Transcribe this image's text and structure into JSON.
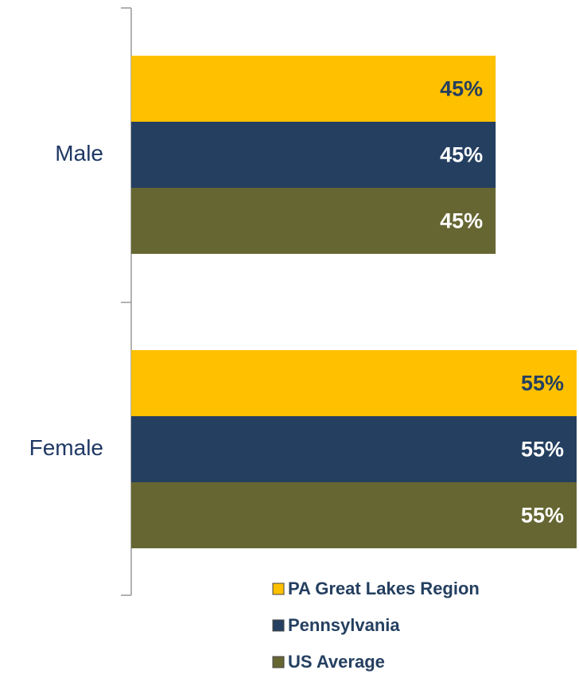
{
  "chart_data": {
    "type": "barh",
    "categories": [
      "Male",
      "Female"
    ],
    "series": [
      {
        "name": "PA Great Lakes Region",
        "color": "#FFC000",
        "label_color": "#243F60",
        "values": [
          45,
          55
        ],
        "value_labels": [
          "45%",
          "55%"
        ]
      },
      {
        "name": "Pennsylvania",
        "color": "#243F60",
        "label_color": "#FFFFFF",
        "values": [
          45,
          55
        ],
        "value_labels": [
          "45%",
          "55%"
        ]
      },
      {
        "name": "US Average",
        "color": "#666633",
        "label_color": "#FFFFFF",
        "values": [
          45,
          55
        ],
        "value_labels": [
          "45%",
          "55%"
        ]
      }
    ],
    "xlim": [
      0,
      55
    ],
    "legend": "bottom-right"
  }
}
